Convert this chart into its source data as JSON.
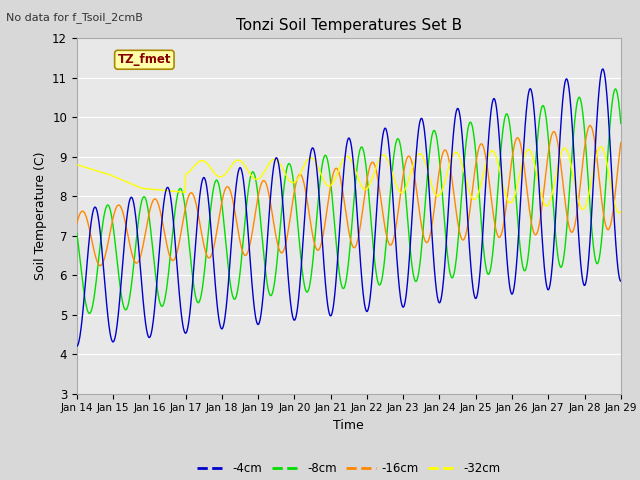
{
  "title": "Tonzi Soil Temperatures Set B",
  "no_data_text": "No data for f_Tsoil_2cmB",
  "tz_fmet_label": "TZ_fmet",
  "xlabel": "Time",
  "ylabel": "Soil Temperature (C)",
  "ylim": [
    3.0,
    12.0
  ],
  "yticks": [
    3.0,
    4.0,
    5.0,
    6.0,
    7.0,
    8.0,
    9.0,
    10.0,
    11.0,
    12.0
  ],
  "x_tick_days": [
    14,
    15,
    16,
    17,
    18,
    19,
    20,
    21,
    22,
    23,
    24,
    25,
    26,
    27,
    28,
    29
  ],
  "colors": {
    "4cm": "#0000cc",
    "8cm": "#00dd00",
    "16cm": "#ff8800",
    "32cm": "#ffff00"
  },
  "legend_labels": [
    "-4cm",
    "-8cm",
    "-16cm",
    "-32cm"
  ],
  "bg_color": "#d8d8d8",
  "plot_bg_color": "#e8e8e8",
  "grid_color": "#ffffff",
  "tz_fmet_box_color": "#ffffaa",
  "tz_fmet_text_color": "#880000"
}
